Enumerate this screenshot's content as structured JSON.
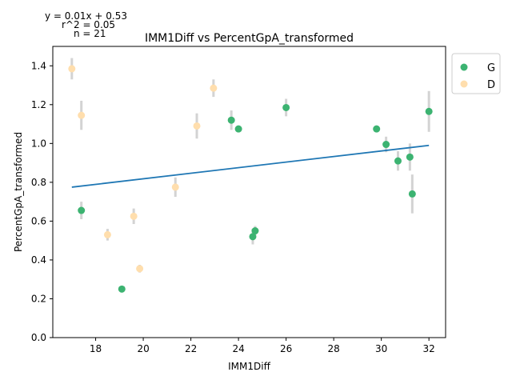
{
  "annotations": {
    "equation": "y = 0.01x + 0.53",
    "r2": "r^2 = 0.05",
    "n": "n = 21"
  },
  "chart_data": {
    "type": "scatter",
    "title": "IMM1Diff vs PercentGpA_transformed",
    "xlabel": "IMM1Diff",
    "ylabel": "PercentGpA_transformed",
    "xlim": [
      16.2,
      32.7
    ],
    "ylim": [
      0.0,
      1.5
    ],
    "xticks": [
      18,
      20,
      22,
      24,
      26,
      28,
      30,
      32
    ],
    "yticks": [
      0.0,
      0.2,
      0.4,
      0.6,
      0.8,
      1.0,
      1.2,
      1.4
    ],
    "grid": false,
    "legend_position": "outside-top-right",
    "series": [
      {
        "name": "G",
        "color": "#3cb371",
        "points": [
          {
            "x": 17.4,
            "y": 0.655,
            "err": 0.045
          },
          {
            "x": 19.1,
            "y": 0.25,
            "err": 0.0
          },
          {
            "x": 23.7,
            "y": 1.12,
            "err": 0.05
          },
          {
            "x": 24.0,
            "y": 1.075,
            "err": 0.0
          },
          {
            "x": 24.6,
            "y": 0.52,
            "err": 0.04
          },
          {
            "x": 24.7,
            "y": 0.55,
            "err": 0.025
          },
          {
            "x": 26.0,
            "y": 1.185,
            "err": 0.045
          },
          {
            "x": 29.8,
            "y": 1.075,
            "err": 0.0
          },
          {
            "x": 30.2,
            "y": 0.995,
            "err": 0.04
          },
          {
            "x": 30.7,
            "y": 0.91,
            "err": 0.05
          },
          {
            "x": 31.2,
            "y": 0.93,
            "err": 0.07
          },
          {
            "x": 31.3,
            "y": 0.74,
            "err": 0.1
          },
          {
            "x": 32.0,
            "y": 1.165,
            "err": 0.105
          }
        ]
      },
      {
        "name": "D",
        "color": "#ffdead",
        "points": [
          {
            "x": 17.0,
            "y": 1.385,
            "err": 0.055
          },
          {
            "x": 17.4,
            "y": 1.145,
            "err": 0.075
          },
          {
            "x": 18.5,
            "y": 0.53,
            "err": 0.03
          },
          {
            "x": 19.6,
            "y": 0.625,
            "err": 0.04
          },
          {
            "x": 19.85,
            "y": 0.355,
            "err": 0.02
          },
          {
            "x": 21.35,
            "y": 0.775,
            "err": 0.05
          },
          {
            "x": 22.25,
            "y": 1.09,
            "err": 0.065
          },
          {
            "x": 22.95,
            "y": 1.285,
            "err": 0.045
          }
        ]
      }
    ],
    "fit_line": {
      "x": [
        17.0,
        32.0
      ],
      "y": [
        0.775,
        0.99
      ],
      "color": "#1f77b4"
    },
    "errorbar_color": "#d3d3d3"
  }
}
